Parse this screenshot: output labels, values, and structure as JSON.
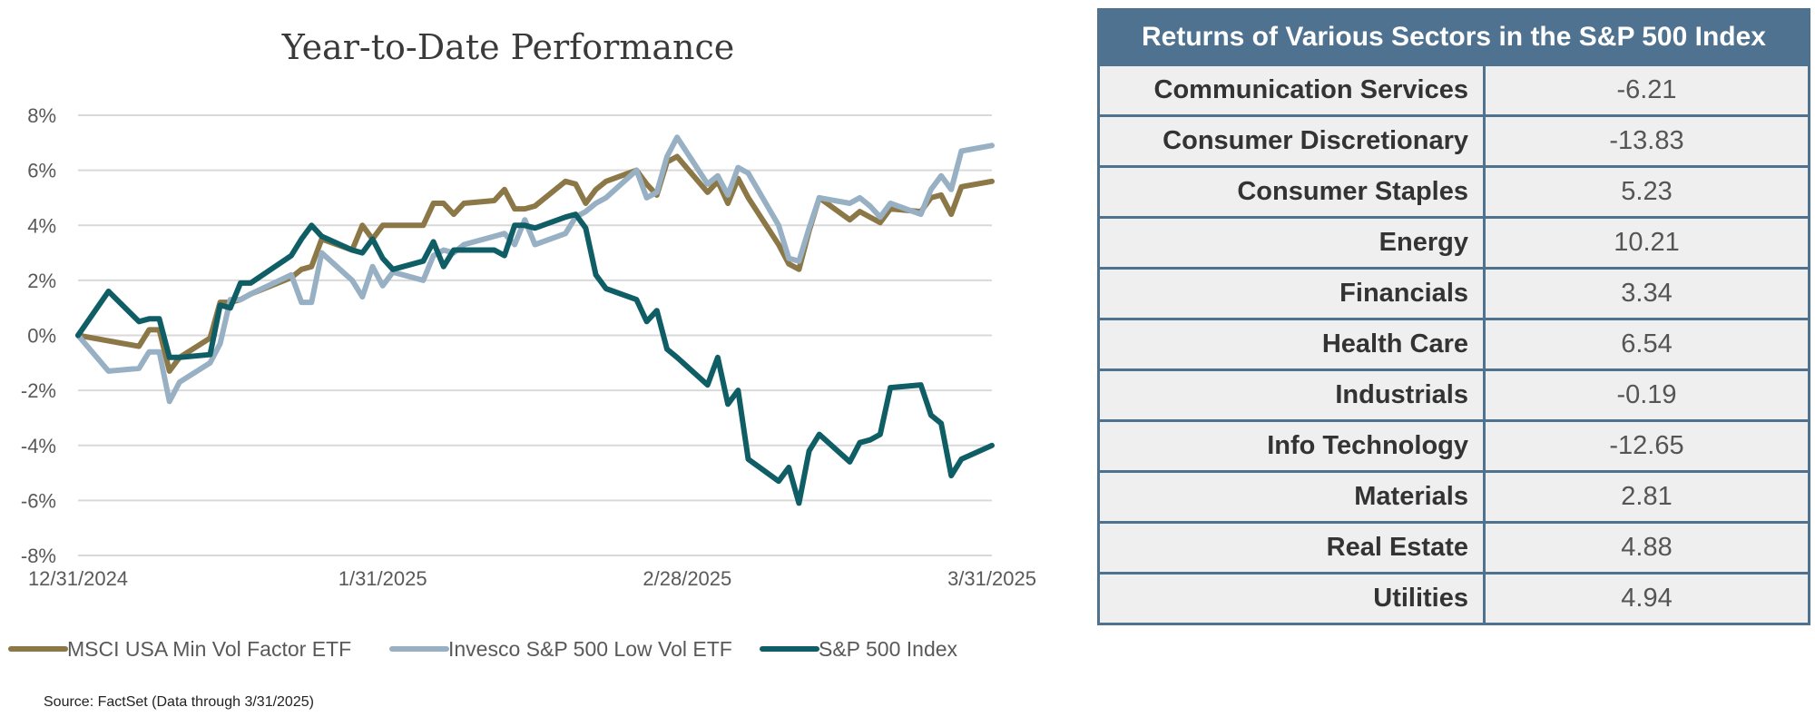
{
  "chart_data": {
    "type": "line",
    "title": "Year-to-Date Performance",
    "xlabel": "",
    "ylabel": "",
    "ylim": [
      -8,
      8
    ],
    "yticks": [
      8,
      6,
      4,
      2,
      0,
      -2,
      -4,
      -6,
      -8
    ],
    "ytick_labels": [
      "8%",
      "6%",
      "4%",
      "2%",
      "0%",
      "-2%",
      "-4%",
      "-6%",
      "-8%"
    ],
    "xtick_labels": [
      "12/31/2024",
      "1/31/2025",
      "2/28/2025",
      "3/31/2025"
    ],
    "x_days": [
      0,
      3,
      6,
      7,
      8,
      9,
      10,
      13,
      14,
      15,
      16,
      17,
      21,
      22,
      23,
      24,
      27,
      28,
      29,
      30,
      31,
      34,
      35,
      36,
      37,
      38,
      41,
      42,
      43,
      44,
      45,
      48,
      49,
      50,
      51,
      52,
      55,
      56,
      57,
      58,
      59,
      62,
      63,
      64,
      65,
      66,
      69,
      70,
      71,
      72,
      73,
      76,
      77,
      78,
      79,
      80,
      83,
      84,
      85,
      86,
      87,
      90
    ],
    "series": [
      {
        "name": "MSCI USA Min Vol Factor ETF",
        "color": "#8c7747",
        "values": [
          0.0,
          -0.2,
          -0.4,
          0.2,
          0.2,
          -1.3,
          -0.8,
          -0.1,
          1.2,
          1.2,
          1.3,
          1.5,
          2.1,
          2.4,
          2.5,
          3.5,
          3.1,
          4.0,
          3.5,
          4.0,
          4.0,
          4.0,
          4.8,
          4.8,
          4.4,
          4.8,
          4.9,
          5.3,
          4.6,
          4.6,
          4.7,
          5.6,
          5.5,
          4.8,
          5.3,
          5.6,
          6.0,
          5.5,
          5.1,
          6.3,
          6.5,
          5.2,
          5.6,
          4.8,
          5.7,
          5.0,
          3.3,
          2.6,
          2.4,
          3.8,
          5.0,
          4.2,
          4.5,
          4.3,
          4.1,
          4.6,
          4.5,
          5.0,
          5.1,
          4.4,
          5.4,
          5.6
        ]
      },
      {
        "name": "Invesco S&P 500 Low Vol ETF",
        "color": "#98b0c4",
        "values": [
          0.0,
          -1.3,
          -1.2,
          -0.6,
          -0.6,
          -2.4,
          -1.7,
          -1.0,
          -0.3,
          1.3,
          1.3,
          1.5,
          2.2,
          1.2,
          1.2,
          3.0,
          2.0,
          1.4,
          2.5,
          1.8,
          2.3,
          2.0,
          2.9,
          3.1,
          3.0,
          3.3,
          3.6,
          3.7,
          3.3,
          4.2,
          3.3,
          3.7,
          4.3,
          4.5,
          4.8,
          5.0,
          6.0,
          5.0,
          5.2,
          6.5,
          7.2,
          5.5,
          5.8,
          5.1,
          6.1,
          5.9,
          4.0,
          2.8,
          2.7,
          3.9,
          5.0,
          4.8,
          5.0,
          4.7,
          4.3,
          4.8,
          4.4,
          5.3,
          5.8,
          5.3,
          6.7,
          6.9
        ]
      },
      {
        "name": "S&P 500 Index",
        "color": "#0f5e66",
        "values": [
          0.0,
          1.6,
          0.5,
          0.6,
          0.6,
          -0.8,
          -0.8,
          -0.7,
          1.1,
          1.0,
          1.9,
          1.9,
          2.9,
          3.5,
          4.0,
          3.6,
          3.1,
          3.0,
          3.5,
          2.8,
          2.4,
          2.7,
          3.4,
          2.5,
          3.1,
          3.1,
          3.1,
          2.9,
          4.0,
          4.0,
          3.9,
          4.3,
          4.4,
          3.9,
          2.2,
          1.7,
          1.3,
          0.5,
          0.9,
          -0.5,
          -0.8,
          -1.8,
          -0.8,
          -2.5,
          -2.0,
          -4.5,
          -5.3,
          -4.8,
          -6.1,
          -4.2,
          -3.6,
          -4.6,
          -3.9,
          -3.8,
          -3.6,
          -1.9,
          -1.8,
          -2.9,
          -3.2,
          -5.1,
          -4.5,
          -4.0
        ]
      }
    ],
    "legend_position": "bottom",
    "source_note": "Source: FactSet (Data through 3/31/2025)"
  },
  "table": {
    "title": "Returns of Various Sectors in the S&P 500 Index",
    "rows": [
      {
        "sector": "Communication Services",
        "value": "-6.21"
      },
      {
        "sector": "Consumer Discretionary",
        "value": "-13.83"
      },
      {
        "sector": "Consumer Staples",
        "value": "5.23"
      },
      {
        "sector": "Energy",
        "value": "10.21"
      },
      {
        "sector": "Financials",
        "value": "3.34"
      },
      {
        "sector": "Health Care",
        "value": "6.54"
      },
      {
        "sector": "Industrials",
        "value": "-0.19"
      },
      {
        "sector": "Info Technology",
        "value": "-12.65"
      },
      {
        "sector": "Materials",
        "value": "2.81"
      },
      {
        "sector": "Real Estate",
        "value": "4.88"
      },
      {
        "sector": "Utilities",
        "value": "4.94"
      }
    ]
  }
}
